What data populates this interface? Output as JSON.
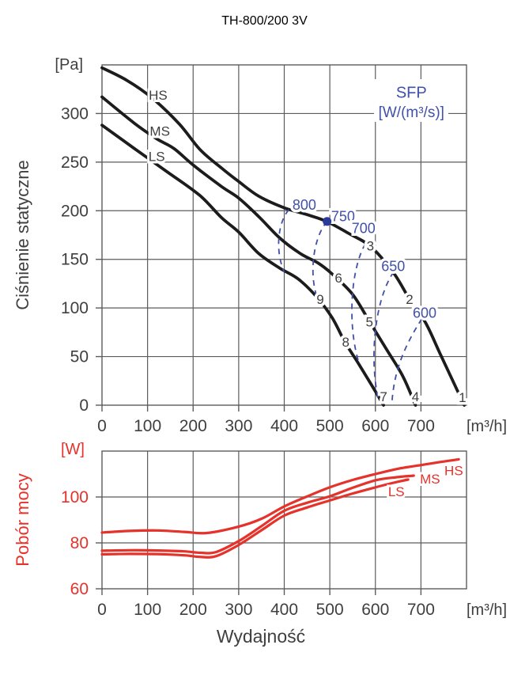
{
  "title": "TH-800/200 3V",
  "xlabel": "Wydajność",
  "colors": {
    "curve_black": "#1c1c1c",
    "grid": "#5c5c5c",
    "text": "#3f3f3f",
    "blue": "#4150a8",
    "dot_blue": "#2c3a9c",
    "red": "#e5322b",
    "background": "#ffffff"
  },
  "chart_data": [
    {
      "type": "line",
      "name": "static-pressure-chart",
      "ylabel": "Ciśnienie statyczne",
      "y_unit": "[Pa]",
      "x_unit": "[m³/h]",
      "xlim": [
        0,
        800
      ],
      "ylim": [
        0,
        350
      ],
      "grid": true,
      "x_ticks": [
        0,
        100,
        200,
        300,
        400,
        500,
        600,
        700
      ],
      "y_ticks": [
        0,
        50,
        100,
        150,
        200,
        250,
        300
      ],
      "series": [
        {
          "name": "HS",
          "label_pos": [
            123,
            319
          ],
          "points": [
            [
              0,
              347
            ],
            [
              55,
              334
            ],
            [
              110,
              316
            ],
            [
              170,
              289
            ],
            [
              215,
              263
            ],
            [
              262,
              244
            ],
            [
              300,
              230
            ],
            [
              344,
              215
            ],
            [
              400,
              203
            ],
            [
              450,
              196
            ],
            [
              493,
              189
            ],
            [
              540,
              177
            ],
            [
              590,
              163
            ],
            [
              640,
              136
            ],
            [
              675,
              109
            ],
            [
              710,
              85
            ],
            [
              745,
              50
            ],
            [
              795,
              0
            ]
          ]
        },
        {
          "name": "MS",
          "label_pos": [
            127,
            282
          ],
          "points": [
            [
              0,
              317
            ],
            [
              71,
              290
            ],
            [
              120,
              274
            ],
            [
              158,
              264
            ],
            [
              200,
              247
            ],
            [
              262,
              225
            ],
            [
              300,
              213
            ],
            [
              344,
              194
            ],
            [
              390,
              172
            ],
            [
              435,
              156
            ],
            [
              475,
              146
            ],
            [
              505,
              135
            ],
            [
              550,
              114
            ],
            [
              587,
              86
            ],
            [
              625,
              57
            ],
            [
              660,
              30
            ],
            [
              688,
              0
            ]
          ]
        },
        {
          "name": "LS",
          "label_pos": [
            120,
            256
          ],
          "points": [
            [
              0,
              288
            ],
            [
              71,
              264
            ],
            [
              140,
              241
            ],
            [
              214,
              216
            ],
            [
              262,
              193
            ],
            [
              300,
              178
            ],
            [
              344,
              156
            ],
            [
              390,
              141
            ],
            [
              430,
              130
            ],
            [
              470,
              112
            ],
            [
              505,
              90
            ],
            [
              533,
              65
            ],
            [
              560,
              45
            ],
            [
              590,
              22
            ],
            [
              618,
              0
            ]
          ]
        }
      ],
      "sfp": {
        "title": "SFP",
        "unit": "[W/(m³/s)]",
        "title_pos": [
          679,
          322
        ],
        "unit_pos": [
          679,
          302
        ],
        "curves": [
          {
            "label": "800",
            "label_pos": [
              444,
              206
            ],
            "bezier": [
              [
                410,
                201
              ],
              [
                388,
                190
              ],
              [
                378,
                160
              ],
              [
                400,
                137
              ]
            ]
          },
          {
            "label": "750",
            "label_pos": [
              529,
              194
            ],
            "bezier": [
              [
                494,
                189
              ],
              [
                462,
                172
              ],
              [
                452,
                130
              ],
              [
                477,
                105
              ]
            ]
          },
          {
            "label": "700",
            "label_pos": [
              574,
              182
            ],
            "bezier": [
              [
                578,
                166
              ],
              [
                545,
                140
              ],
              [
                538,
                80
              ],
              [
                565,
                42
              ]
            ]
          },
          {
            "label": "650",
            "label_pos": [
              639,
              143
            ],
            "bezier": [
              [
                640,
                137
              ],
              [
                600,
                110
              ],
              [
                585,
                50
              ],
              [
                607,
                5
              ]
            ]
          },
          {
            "label": "600",
            "label_pos": [
              708,
              95
            ],
            "bezier": [
              [
                702,
                89
              ],
              [
                663,
                60
              ],
              [
                640,
                35
              ],
              [
                636,
                0
              ]
            ]
          }
        ]
      },
      "operating_point": {
        "q": 494,
        "p": 189
      },
      "point_markers": [
        {
          "n": "1",
          "q": 791,
          "p": 8
        },
        {
          "n": "2",
          "q": 675,
          "p": 109
        },
        {
          "n": "3",
          "q": 589,
          "p": 164
        },
        {
          "n": "4",
          "q": 688,
          "p": 9
        },
        {
          "n": "5",
          "q": 587,
          "p": 86
        },
        {
          "n": "6",
          "q": 519,
          "p": 131
        },
        {
          "n": "7",
          "q": 618,
          "p": 9
        },
        {
          "n": "8",
          "q": 535,
          "p": 65
        },
        {
          "n": "9",
          "q": 479,
          "p": 109
        }
      ]
    },
    {
      "type": "line",
      "name": "power-chart",
      "ylabel": "Pobór mocy",
      "y_unit": "[W]",
      "x_unit": "[m³/h]",
      "xlim": [
        0,
        800
      ],
      "ylim": [
        60,
        120
      ],
      "grid": true,
      "x_ticks": [
        0,
        100,
        200,
        300,
        400,
        500,
        600,
        700
      ],
      "y_ticks": [
        60,
        80,
        100
      ],
      "series": [
        {
          "name": "HS",
          "label_pos": [
            772,
            111.5
          ],
          "points": [
            [
              0,
              84.5
            ],
            [
              60,
              85.2
            ],
            [
              120,
              85.4
            ],
            [
              180,
              84.8
            ],
            [
              230,
              84.3
            ],
            [
              300,
              87.1
            ],
            [
              350,
              90.5
            ],
            [
              400,
              95.9
            ],
            [
              450,
              100.2
            ],
            [
              500,
              104.2
            ],
            [
              550,
              107.4
            ],
            [
              600,
              110
            ],
            [
              650,
              112.3
            ],
            [
              700,
              113.9
            ],
            [
              745,
              115.3
            ],
            [
              783,
              116.4
            ]
          ]
        },
        {
          "name": "MS",
          "label_pos": [
            720,
            108
          ],
          "points": [
            [
              0,
              76.6
            ],
            [
              60,
              76.8
            ],
            [
              120,
              76.7
            ],
            [
              180,
              76.3
            ],
            [
              215,
              75.7
            ],
            [
              250,
              76.0
            ],
            [
              300,
              80.8
            ],
            [
              350,
              87.3
            ],
            [
              400,
              94.0
            ],
            [
              450,
              97.5
            ],
            [
              500,
              100.3
            ],
            [
              550,
              104.0
            ],
            [
              601,
              107.3
            ],
            [
              645,
              108.6
            ],
            [
              684,
              109.3
            ]
          ]
        },
        {
          "name": "LS",
          "label_pos": [
            646,
            102.5
          ],
          "points": [
            [
              0,
              75.0
            ],
            [
              60,
              75.2
            ],
            [
              120,
              75.1
            ],
            [
              180,
              74.6
            ],
            [
              215,
              73.9
            ],
            [
              250,
              74.2
            ],
            [
              300,
              79.1
            ],
            [
              350,
              85.5
            ],
            [
              400,
              91.9
            ],
            [
              450,
              95.4
            ],
            [
              500,
              98.5
            ],
            [
              550,
              101.5
            ],
            [
              600,
              104.2
            ],
            [
              640,
              106.2
            ],
            [
              672,
              107.6
            ]
          ]
        }
      ]
    }
  ]
}
